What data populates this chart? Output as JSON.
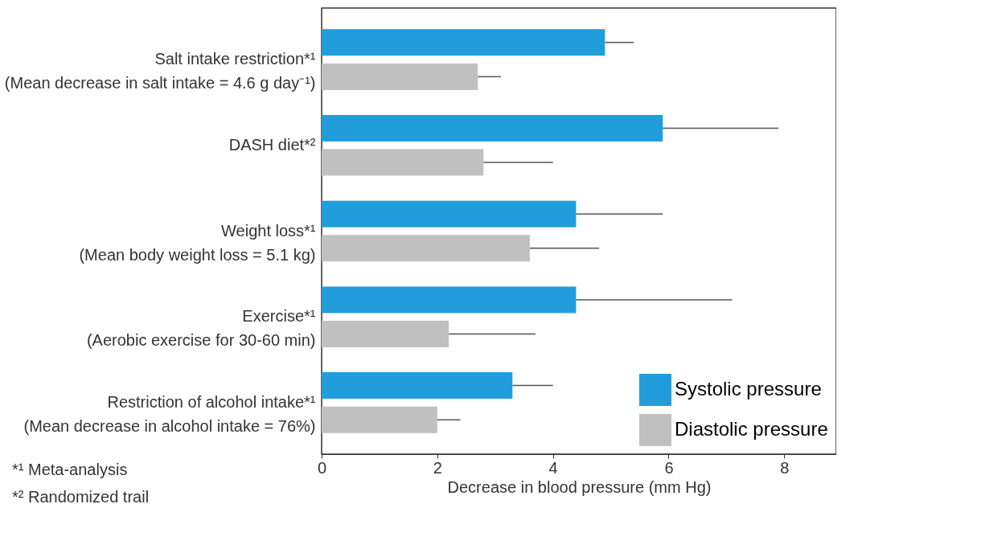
{
  "chart_data": {
    "type": "bar",
    "orientation": "horizontal",
    "categories": [
      "Salt intake restriction*¹\n(Mean decrease in salt intake = 4.6 g day⁻¹)",
      "DASH diet*²",
      "Weight loss*¹\n(Mean body weight loss = 5.1 kg)",
      "Exercise*¹\n(Aerobic exercise for 30-60 min)",
      "Restriction of alcohol intake*¹\n(Mean decrease in alcohol intake = 76%)"
    ],
    "series": [
      {
        "name": "Systolic pressure",
        "color": "#229ddb",
        "values": [
          4.9,
          5.9,
          4.4,
          4.4,
          3.3
        ],
        "errors": [
          [
            4.9,
            5.4
          ],
          [
            5.9,
            7.9
          ],
          [
            4.4,
            5.9
          ],
          [
            4.4,
            7.1
          ],
          [
            3.3,
            4.0
          ]
        ]
      },
      {
        "name": "Diastolic pressure",
        "color": "#c0c0c0",
        "values": [
          2.7,
          2.8,
          3.6,
          2.2,
          2.0
        ],
        "errors": [
          [
            2.7,
            3.1
          ],
          [
            2.8,
            4.0
          ],
          [
            3.6,
            4.8
          ],
          [
            2.2,
            3.7
          ],
          [
            2.0,
            2.4
          ]
        ]
      }
    ],
    "xlabel": "Decrease in blood pressure (mm Hg)",
    "xlim": [
      0,
      8.9
    ],
    "xticks": [
      0,
      2,
      4,
      6,
      8
    ],
    "grid": false,
    "legend": "bottom right",
    "annotations": [
      "*¹ Meta-analysis",
      "*² Randomized trail"
    ]
  }
}
